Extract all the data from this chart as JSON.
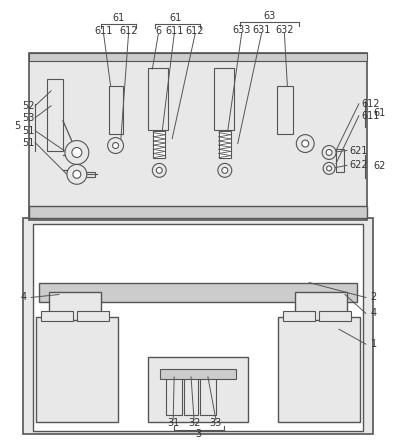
{
  "bg_color": "#ffffff",
  "line_color": "#555555",
  "light_gray": "#cccccc",
  "lighter_gray": "#e8e8e8",
  "label_color": "#333333",
  "fig_width": 3.96,
  "fig_height": 4.43,
  "dpi": 100
}
